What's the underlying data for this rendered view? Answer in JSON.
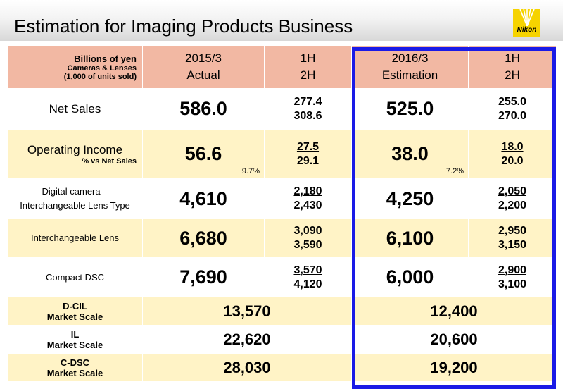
{
  "title": "Estimation for Imaging Products Business",
  "logo": {
    "text": "Nikon",
    "color": "#f6d300"
  },
  "frame_color": "#1a1ae6",
  "header": {
    "unit_line1": "Billions of yen",
    "unit_line2": "Cameras & Lenses",
    "unit_line3": "(1,000 of units sold)",
    "fy2015_year": "2015/3",
    "fy2015_type": "Actual",
    "fy2016_year": "2016/3",
    "fy2016_type": "Estimation",
    "h1": "1H",
    "h2": "2H"
  },
  "rows": {
    "net_sales": {
      "label": "Net Sales",
      "fy2015": "586.0",
      "fy2015_1h": "277.4",
      "fy2015_2h": "308.6",
      "fy2016": "525.0",
      "fy2016_1h": "255.0",
      "fy2016_2h": "270.0"
    },
    "operating_income": {
      "label": "Operating Income",
      "sub": "% vs Net Sales",
      "fy2015": "56.6",
      "fy2015_pct": "9.7%",
      "fy2015_1h": "27.5",
      "fy2015_2h": "29.1",
      "fy2016": "38.0",
      "fy2016_pct": "7.2%",
      "fy2016_1h": "18.0",
      "fy2016_2h": "20.0"
    },
    "dcil": {
      "label1": "Digital camera –",
      "label2": "Interchangeable Lens Type",
      "fy2015": "4,610",
      "fy2015_1h": "2,180",
      "fy2015_2h": "2,430",
      "fy2016": "4,250",
      "fy2016_1h": "2,050",
      "fy2016_2h": "2,200"
    },
    "il": {
      "label": "Interchangeable Lens",
      "fy2015": "6,680",
      "fy2015_1h": "3,090",
      "fy2015_2h": "3,590",
      "fy2016": "6,100",
      "fy2016_1h": "2,950",
      "fy2016_2h": "3,150"
    },
    "cdsc": {
      "label": "Compact DSC",
      "fy2015": "7,690",
      "fy2015_1h": "3,570",
      "fy2015_2h": "4,120",
      "fy2016": "6,000",
      "fy2016_1h": "2,900",
      "fy2016_2h": "3,100"
    }
  },
  "market": [
    {
      "label1": "D-CIL",
      "label2": "Market Scale",
      "fy2015": "13,570",
      "fy2016": "12,400"
    },
    {
      "label1": "IL",
      "label2": "Market Scale",
      "fy2015": "22,620",
      "fy2016": "20,600"
    },
    {
      "label1": "C-DSC",
      "label2": "Market Scale",
      "fy2015": "28,030",
      "fy2016": "19,200"
    }
  ]
}
